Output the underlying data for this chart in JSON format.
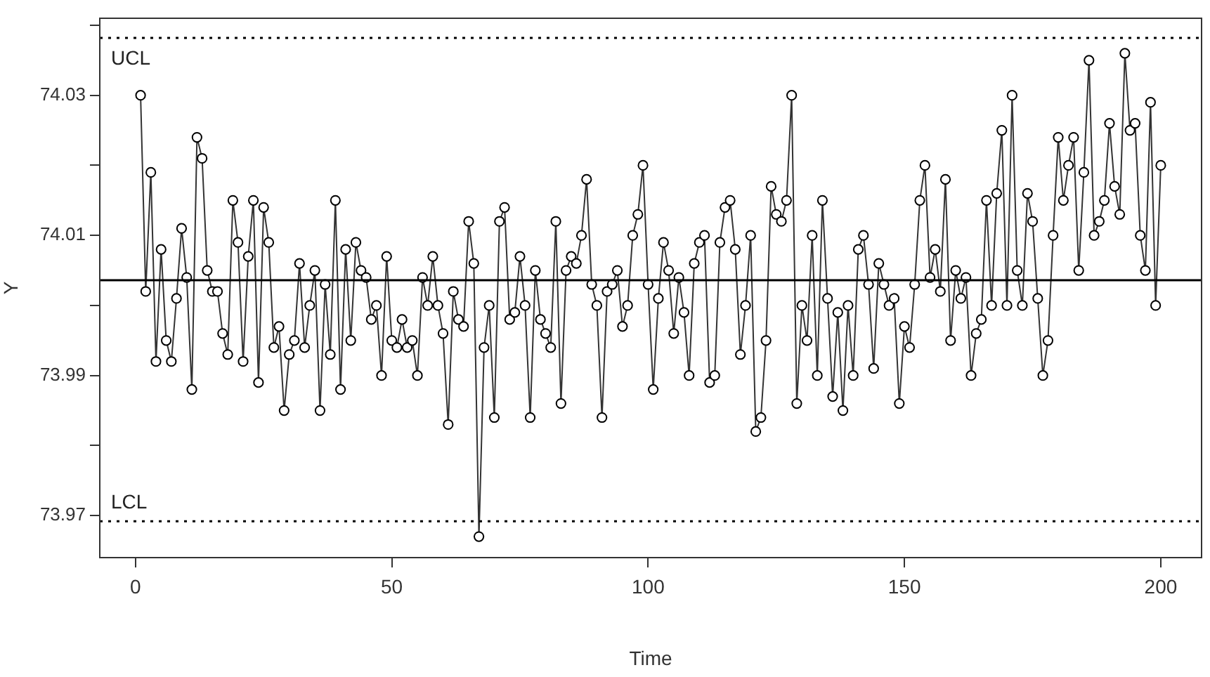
{
  "chart_data": {
    "type": "line",
    "xlabel": "Time",
    "ylabel": "Y",
    "marker": "circle",
    "line_style": "solid",
    "xlim": [
      -6.96,
      207.96
    ],
    "xticks": [
      0,
      50,
      100,
      150,
      200
    ],
    "ylim": [
      73.964,
      74.041
    ],
    "yticks": [
      {
        "value": 73.97,
        "label": "73.97"
      },
      {
        "value": 73.98,
        "label": null
      },
      {
        "value": 73.99,
        "label": "73.99"
      },
      {
        "value": 74.0,
        "label": null
      },
      {
        "value": 74.01,
        "label": "74.01"
      },
      {
        "value": 74.02,
        "label": null
      },
      {
        "value": 74.03,
        "label": "74.03"
      },
      {
        "value": 74.04,
        "label": null
      }
    ],
    "ref_lines": [
      {
        "axis": "y",
        "value": 74.0382,
        "label": "UCL",
        "color": "#000000",
        "line_style": "dotted"
      },
      {
        "axis": "y",
        "value": 74.0036,
        "label": null,
        "color": "#000000",
        "line_style": "solid"
      },
      {
        "axis": "y",
        "value": 73.9692,
        "label": "LCL",
        "color": "#000000",
        "line_style": "dotted"
      }
    ],
    "series": [
      {
        "color": "#333333",
        "x": [
          1,
          2,
          3,
          4,
          5,
          6,
          7,
          8,
          9,
          10,
          11,
          12,
          13,
          14,
          15,
          16,
          17,
          18,
          19,
          20,
          21,
          22,
          23,
          24,
          25,
          26,
          27,
          28,
          29,
          30,
          31,
          32,
          33,
          34,
          35,
          36,
          37,
          38,
          39,
          40,
          41,
          42,
          43,
          44,
          45,
          46,
          47,
          48,
          49,
          50,
          51,
          52,
          53,
          54,
          55,
          56,
          57,
          58,
          59,
          60,
          61,
          62,
          63,
          64,
          65,
          66,
          67,
          68,
          69,
          70,
          71,
          72,
          73,
          74,
          75,
          76,
          77,
          78,
          79,
          80,
          81,
          82,
          83,
          84,
          85,
          86,
          87,
          88,
          89,
          90,
          91,
          92,
          93,
          94,
          95,
          96,
          97,
          98,
          99,
          100,
          101,
          102,
          103,
          104,
          105,
          106,
          107,
          108,
          109,
          110,
          111,
          112,
          113,
          114,
          115,
          116,
          117,
          118,
          119,
          120,
          121,
          122,
          123,
          124,
          125,
          126,
          127,
          128,
          129,
          130,
          131,
          132,
          133,
          134,
          135,
          136,
          137,
          138,
          139,
          140,
          141,
          142,
          143,
          144,
          145,
          146,
          147,
          148,
          149,
          150,
          151,
          152,
          153,
          154,
          155,
          156,
          157,
          158,
          159,
          160,
          161,
          162,
          163,
          164,
          165,
          166,
          167,
          168,
          169,
          170,
          171,
          172,
          173,
          174,
          175,
          176,
          177,
          178,
          179,
          180,
          181,
          182,
          183,
          184,
          185,
          186,
          187,
          188,
          189,
          190,
          191,
          192,
          193,
          194,
          195,
          196,
          197,
          198,
          199,
          200
        ],
        "values": [
          74.03,
          74.002,
          74.019,
          73.992,
          74.008,
          73.995,
          73.992,
          74.001,
          74.011,
          74.004,
          73.988,
          74.024,
          74.021,
          74.005,
          74.002,
          74.002,
          73.996,
          73.993,
          74.015,
          74.009,
          73.992,
          74.007,
          74.015,
          73.989,
          74.014,
          74.009,
          73.994,
          73.997,
          73.985,
          73.993,
          73.995,
          74.006,
          73.994,
          74.0,
          74.005,
          73.985,
          74.003,
          73.993,
          74.015,
          73.988,
          74.008,
          73.995,
          74.009,
          74.005,
          74.004,
          73.998,
          74.0,
          73.99,
          74.007,
          73.995,
          73.994,
          73.998,
          73.994,
          73.995,
          73.99,
          74.004,
          74.0,
          74.007,
          74.0,
          73.996,
          73.983,
          74.002,
          73.998,
          73.997,
          74.012,
          74.006,
          73.967,
          73.994,
          74.0,
          73.984,
          74.012,
          74.014,
          73.998,
          73.999,
          74.007,
          74.0,
          73.984,
          74.005,
          73.998,
          73.996,
          73.994,
          74.012,
          73.986,
          74.005,
          74.007,
          74.006,
          74.01,
          74.018,
          74.003,
          74.0,
          73.984,
          74.002,
          74.003,
          74.005,
          73.997,
          74.0,
          74.01,
          74.013,
          74.02,
          74.003,
          73.988,
          74.001,
          74.009,
          74.005,
          73.996,
          74.004,
          73.999,
          73.99,
          74.006,
          74.009,
          74.01,
          73.989,
          73.99,
          74.009,
          74.014,
          74.015,
          74.008,
          73.993,
          74.0,
          74.01,
          73.982,
          73.984,
          73.995,
          74.017,
          74.013,
          74.012,
          74.015,
          74.03,
          73.986,
          74.0,
          73.995,
          74.01,
          73.99,
          74.015,
          74.001,
          73.987,
          73.999,
          73.985,
          74.0,
          73.99,
          74.008,
          74.01,
          74.003,
          73.991,
          74.006,
          74.003,
          74.0,
          74.001,
          73.986,
          73.997,
          73.994,
          74.003,
          74.015,
          74.02,
          74.004,
          74.008,
          74.002,
          74.018,
          73.995,
          74.005,
          74.001,
          74.004,
          73.99,
          73.996,
          73.998,
          74.015,
          74.0,
          74.016,
          74.025,
          74.0,
          74.03,
          74.005,
          74.0,
          74.016,
          74.012,
          74.001,
          73.99,
          73.995,
          74.01,
          74.024,
          74.015,
          74.02,
          74.024,
          74.005,
          74.019,
          74.035,
          74.01,
          74.012,
          74.015,
          74.026,
          74.017,
          74.013,
          74.036,
          74.025,
          74.026,
          74.01,
          74.005,
          74.029,
          74.0,
          74.02
        ]
      }
    ]
  }
}
